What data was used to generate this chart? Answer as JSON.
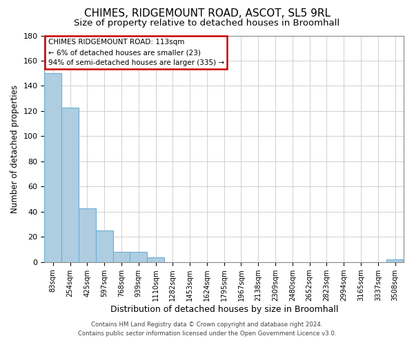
{
  "title": "CHIMES, RIDGEMOUNT ROAD, ASCOT, SL5 9RL",
  "subtitle": "Size of property relative to detached houses in Broomhall",
  "xlabel": "Distribution of detached houses by size in Broomhall",
  "ylabel": "Number of detached properties",
  "bar_labels": [
    "83sqm",
    "254sqm",
    "425sqm",
    "597sqm",
    "768sqm",
    "939sqm",
    "1110sqm",
    "1282sqm",
    "1453sqm",
    "1624sqm",
    "1795sqm",
    "1967sqm",
    "2138sqm",
    "2309sqm",
    "2480sqm",
    "2652sqm",
    "2823sqm",
    "2994sqm",
    "3165sqm",
    "3337sqm",
    "3508sqm"
  ],
  "bar_values": [
    150,
    123,
    43,
    25,
    8,
    8,
    4,
    0,
    0,
    0,
    0,
    0,
    0,
    0,
    0,
    0,
    0,
    0,
    0,
    0,
    2
  ],
  "bar_color_default": "#aecde0",
  "bar_edge_color": "#6aafd4",
  "ylim": [
    0,
    180
  ],
  "yticks": [
    0,
    20,
    40,
    60,
    80,
    100,
    120,
    140,
    160,
    180
  ],
  "annotation_line1": "CHIMES RIDGEMOUNT ROAD: 113sqm",
  "annotation_line2": "← 6% of detached houses are smaller (23)",
  "annotation_line3": "94% of semi-detached houses are larger (335) →",
  "footer_line1": "Contains HM Land Registry data © Crown copyright and database right 2024.",
  "footer_line2": "Contains public sector information licensed under the Open Government Licence v3.0.",
  "background_color": "#ffffff",
  "grid_color": "#d0d0d0",
  "annotation_box_color": "#cc0000",
  "title_fontsize": 11,
  "subtitle_fontsize": 9.5
}
